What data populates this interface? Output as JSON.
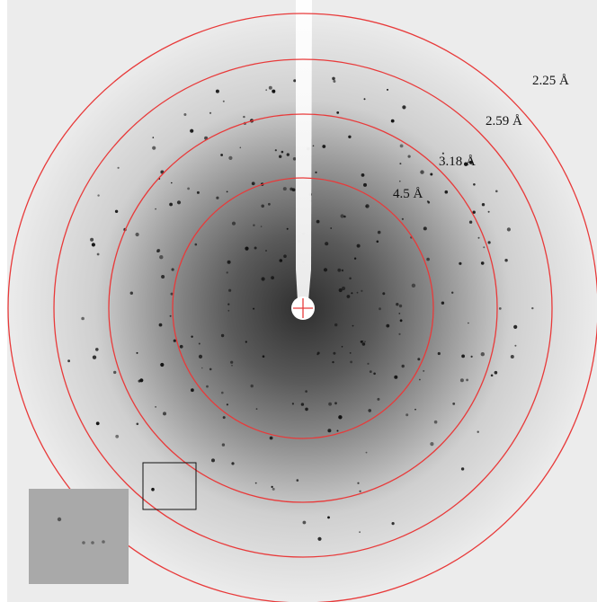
{
  "rings": [
    {
      "label": "4.5 Å"
    },
    {
      "label": "3.18 Å"
    },
    {
      "label": "2.59 Å"
    },
    {
      "label": "2.25 Å"
    }
  ]
}
